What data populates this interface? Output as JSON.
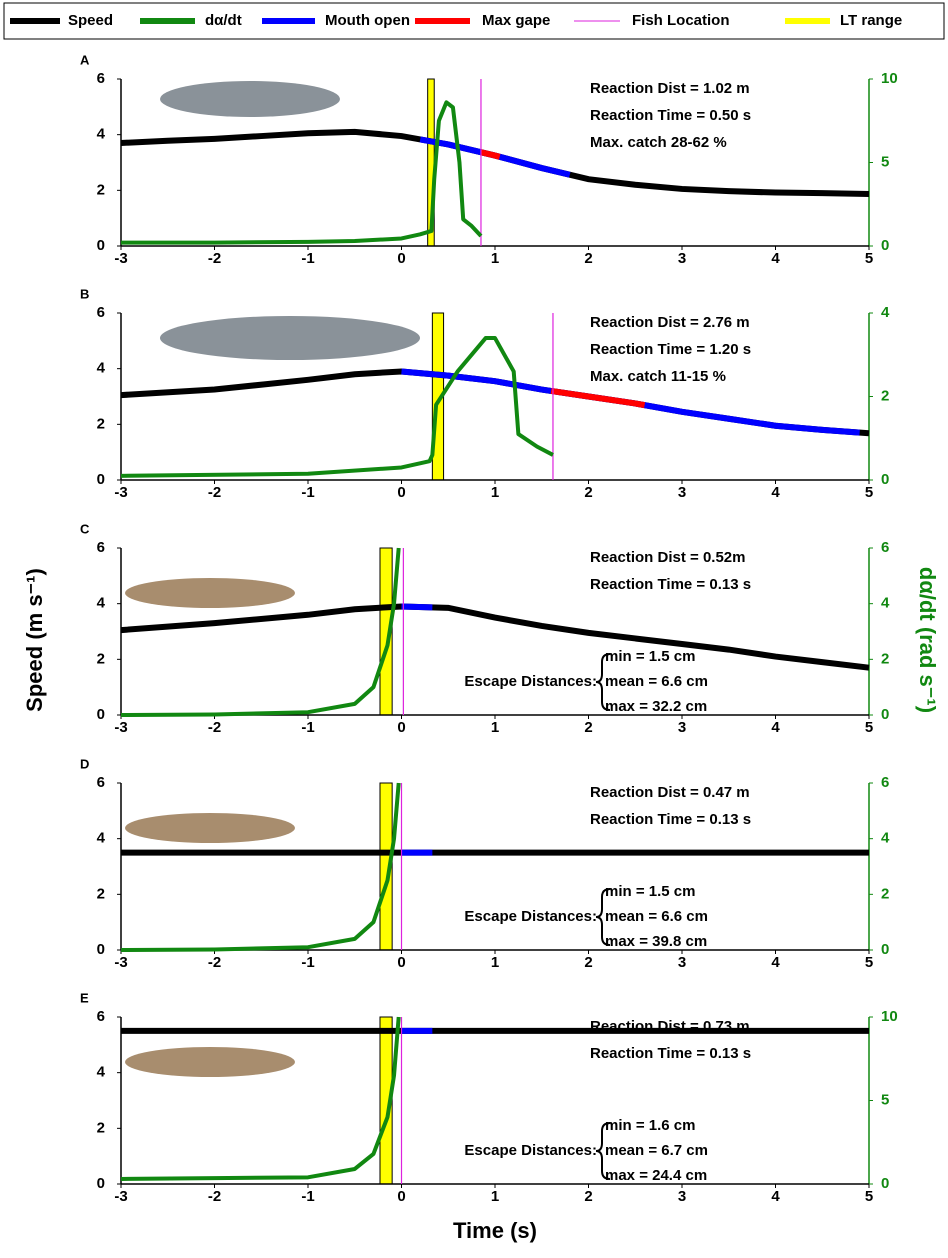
{
  "legend": [
    {
      "name": "Speed",
      "color": "#000000"
    },
    {
      "name": "dα/dt",
      "color": "#118811"
    },
    {
      "name": "Mouth open",
      "color": "#0000ff"
    },
    {
      "name": "Max gape",
      "color": "#ff0000"
    },
    {
      "name": "Fish Location",
      "color": "#dd22dd"
    },
    {
      "name": "LT range",
      "color": "#ffff00"
    }
  ],
  "y_label": "Speed (m s⁻¹)",
  "y2_label": "dα/dt (rad s⁻¹)",
  "x_label": "Time (s)",
  "chart_data": [
    {
      "type": "line",
      "label": "A",
      "xlim": [
        -3,
        5
      ],
      "xticks": [
        -3,
        -2,
        -1,
        0,
        1,
        2,
        3,
        4,
        5
      ],
      "ylim": [
        0,
        6
      ],
      "yticks": [
        0,
        2,
        4,
        6
      ],
      "y2lim": [
        0,
        10
      ],
      "y2ticks": [
        0,
        5,
        10
      ],
      "speed": {
        "x": [
          -3,
          -2.5,
          -2,
          -1.5,
          -1,
          -0.5,
          0,
          0.5,
          1,
          1.5,
          2,
          2.5,
          3,
          3.5,
          4,
          4.5,
          5
        ],
        "values": [
          3.7,
          3.78,
          3.85,
          3.95,
          4.05,
          4.1,
          3.95,
          3.65,
          3.25,
          2.8,
          2.4,
          2.2,
          2.05,
          1.97,
          1.92,
          1.9,
          1.87
        ]
      },
      "dadt": {
        "x": [
          -3,
          -2,
          -1,
          -0.5,
          0,
          0.2,
          0.32,
          0.35,
          0.4,
          0.48,
          0.55,
          0.62,
          0.66,
          0.75,
          0.85
        ],
        "values": [
          0.2,
          0.2,
          0.25,
          0.3,
          0.45,
          0.7,
          0.9,
          4,
          7.5,
          8.6,
          8.3,
          5,
          1.6,
          1.2,
          0.6
        ]
      },
      "mouth_open": [
        0.2,
        1.8
      ],
      "max_gape": [
        0.85,
        1.05
      ],
      "fish_location": 0.85,
      "lt_range": [
        0.28,
        0.35
      ],
      "annotations": [
        "Reaction Dist = 1.02 m",
        "Reaction Time = 0.50 s",
        "Max. catch 28-62 %"
      ]
    },
    {
      "type": "line",
      "label": "B",
      "xlim": [
        -3,
        5
      ],
      "xticks": [
        -3,
        -2,
        -1,
        0,
        1,
        2,
        3,
        4,
        5
      ],
      "ylim": [
        0,
        6
      ],
      "yticks": [
        0,
        2,
        4,
        6
      ],
      "y2lim": [
        0,
        4
      ],
      "y2ticks": [
        0,
        2,
        4
      ],
      "speed": {
        "x": [
          -3,
          -2,
          -1,
          -0.5,
          0,
          0.5,
          1,
          1.5,
          2,
          2.5,
          3,
          3.5,
          4,
          4.5,
          5
        ],
        "values": [
          3.05,
          3.25,
          3.6,
          3.8,
          3.9,
          3.75,
          3.55,
          3.25,
          3.0,
          2.75,
          2.45,
          2.2,
          1.95,
          1.8,
          1.68
        ]
      },
      "dadt": {
        "x": [
          -3,
          -1,
          0,
          0.3,
          0.33,
          0.37,
          0.6,
          0.9,
          1,
          1.2,
          1.25,
          1.45,
          1.62
        ],
        "values": [
          0.1,
          0.15,
          0.3,
          0.45,
          0.6,
          1.8,
          2.6,
          3.4,
          3.4,
          2.6,
          1.1,
          0.8,
          0.6
        ]
      },
      "mouth_open": [
        0,
        4.9
      ],
      "max_gape": [
        1.6,
        2.6
      ],
      "fish_location": 1.62,
      "lt_range": [
        0.33,
        0.45
      ],
      "annotations": [
        "Reaction Dist = 2.76 m",
        "Reaction Time = 1.20 s",
        "Max. catch 11-15 %"
      ]
    },
    {
      "type": "line",
      "label": "C",
      "xlim": [
        -3,
        5
      ],
      "xticks": [
        -3,
        -2,
        -1,
        0,
        1,
        2,
        3,
        4,
        5
      ],
      "ylim": [
        0,
        6
      ],
      "yticks": [
        0,
        2,
        4,
        6
      ],
      "y2lim": [
        0,
        6
      ],
      "y2ticks": [
        0,
        2,
        4,
        6
      ],
      "speed": {
        "x": [
          -3,
          -2,
          -1,
          -0.5,
          0,
          0.5,
          1,
          1.5,
          2,
          2.5,
          3,
          3.5,
          4,
          4.5,
          5
        ],
        "values": [
          3.05,
          3.3,
          3.6,
          3.8,
          3.9,
          3.85,
          3.5,
          3.2,
          2.95,
          2.75,
          2.55,
          2.35,
          2.1,
          1.9,
          1.7
        ]
      },
      "dadt": {
        "x": [
          -3,
          -2,
          -1,
          -0.5,
          -0.3,
          -0.15,
          -0.08,
          -0.03
        ],
        "values": [
          0,
          0.02,
          0.1,
          0.4,
          1,
          2.5,
          4,
          6
        ]
      },
      "mouth_open": [
        0,
        0.33
      ],
      "fish_location": 0.02,
      "lt_range": [
        -0.23,
        -0.1
      ],
      "annotations": [
        "Reaction Dist = 0.52m",
        "Reaction Time = 0.13 s"
      ],
      "escape": {
        "label": "Escape Distances:",
        "items": [
          "min = 1.5 cm",
          "mean = 6.6 cm",
          "max = 32.2 cm"
        ]
      }
    },
    {
      "type": "line",
      "label": "D",
      "xlim": [
        -3,
        5
      ],
      "xticks": [
        -3,
        -2,
        -1,
        0,
        1,
        2,
        3,
        4,
        5
      ],
      "ylim": [
        0,
        6
      ],
      "yticks": [
        0,
        2,
        4,
        6
      ],
      "y2lim": [
        0,
        6
      ],
      "y2ticks": [
        0,
        2,
        4,
        6
      ],
      "speed": {
        "x": [
          -3,
          5
        ],
        "values": [
          3.5,
          3.5
        ]
      },
      "dadt": {
        "x": [
          -3,
          -2,
          -1,
          -0.5,
          -0.3,
          -0.15,
          -0.08,
          -0.03
        ],
        "values": [
          0,
          0.02,
          0.1,
          0.4,
          1,
          2.5,
          4,
          6
        ]
      },
      "mouth_open": [
        0,
        0.33
      ],
      "fish_location": 0,
      "lt_range": [
        -0.23,
        -0.1
      ],
      "annotations": [
        "Reaction Dist = 0.47 m",
        "Reaction Time = 0.13 s"
      ],
      "escape": {
        "label": "Escape Distances:",
        "items": [
          "min = 1.5 cm",
          "mean = 6.6 cm",
          "max = 39.8 cm"
        ]
      }
    },
    {
      "type": "line",
      "label": "E",
      "xlim": [
        -3,
        5
      ],
      "xticks": [
        -3,
        -2,
        -1,
        0,
        1,
        2,
        3,
        4,
        5
      ],
      "ylim": [
        0,
        6
      ],
      "yticks": [
        0,
        2,
        4,
        6
      ],
      "y2lim": [
        0,
        10
      ],
      "y2ticks": [
        0,
        5,
        10
      ],
      "speed": {
        "x": [
          -3,
          5
        ],
        "values": [
          5.5,
          5.5
        ]
      },
      "dadt": {
        "x": [
          -3,
          -2,
          -1,
          -0.5,
          -0.3,
          -0.15,
          -0.08,
          -0.03
        ],
        "values": [
          0.3,
          0.35,
          0.4,
          0.9,
          1.8,
          4,
          6.5,
          10
        ]
      },
      "mouth_open": [
        0,
        0.33
      ],
      "fish_location": 0,
      "lt_range": [
        -0.23,
        -0.1
      ],
      "annotations": [
        "Reaction Dist = 0.73 m",
        "Reaction Time = 0.13 s"
      ],
      "escape": {
        "label": "Escape Distances:",
        "items": [
          "min = 1.6 cm",
          "mean = 6.7 cm",
          "max = 24.4 cm"
        ]
      }
    }
  ]
}
